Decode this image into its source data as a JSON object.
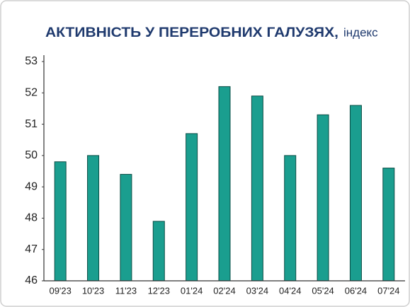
{
  "chart_data": {
    "type": "bar",
    "title": "АКТИВНІСТЬ У ПЕРЕРОБНИХ ГАЛУЗЯХ,",
    "subtitle": "індекс",
    "categories": [
      "09'23",
      "10'23",
      "11'23",
      "12'23",
      "01'24",
      "02'24",
      "03'24",
      "04'24",
      "05'24",
      "06'24",
      "07'24"
    ],
    "values": [
      49.8,
      50.0,
      49.4,
      47.9,
      50.7,
      52.2,
      51.9,
      50.0,
      51.3,
      51.6,
      49.6
    ],
    "color": "#1a9e8f",
    "ylim": [
      46,
      53
    ],
    "yticks": [
      46,
      47,
      48,
      49,
      50,
      51,
      52,
      53
    ],
    "grid": false
  }
}
